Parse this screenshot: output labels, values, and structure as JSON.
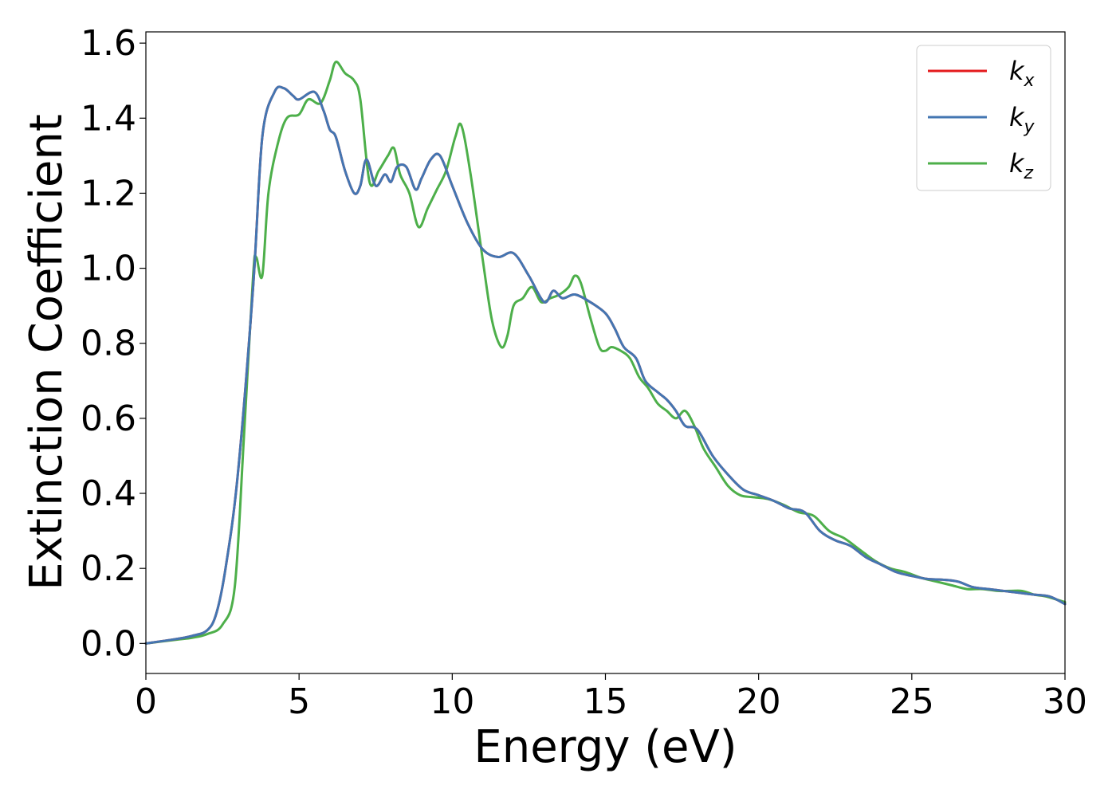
{
  "chart_data": {
    "type": "line",
    "title": "",
    "xlabel": "Energy (eV)",
    "ylabel": "Extinction Coefficient",
    "xlim": [
      0,
      30
    ],
    "ylim": [
      -0.08,
      1.63
    ],
    "xticks": [
      0,
      5,
      10,
      15,
      20,
      25,
      30
    ],
    "xtick_labels": [
      "0",
      "5",
      "10",
      "15",
      "20",
      "25",
      "30"
    ],
    "yticks": [
      0.0,
      0.2,
      0.4,
      0.6,
      0.8,
      1.0,
      1.2,
      1.4,
      1.6
    ],
    "ytick_labels": [
      "0.0",
      "0.2",
      "0.4",
      "0.6",
      "0.8",
      "1.0",
      "1.2",
      "1.4",
      "1.6"
    ],
    "grid": false,
    "legend_position": "top-right",
    "series": [
      {
        "name": "k_x",
        "label_base": "k",
        "label_sub": "x",
        "color": "#e41a1c",
        "x": [
          0,
          1,
          1.5,
          2,
          2.3,
          2.6,
          3.0,
          3.5,
          3.8,
          4.2,
          4.5,
          4.8,
          5.0,
          5.5,
          5.8,
          6.0,
          6.2,
          6.5,
          6.8,
          7.0,
          7.2,
          7.5,
          7.8,
          8.0,
          8.2,
          8.5,
          8.8,
          9.0,
          9.3,
          9.6,
          10.0,
          10.5,
          11.0,
          11.5,
          12.0,
          12.5,
          13.0,
          13.3,
          13.6,
          14.0,
          14.5,
          15.0,
          15.3,
          15.6,
          16.0,
          16.3,
          16.7,
          17.0,
          17.3,
          17.6,
          18.0,
          18.5,
          19.0,
          19.5,
          20.0,
          20.5,
          21.0,
          21.5,
          22.0,
          22.5,
          23.0,
          23.5,
          24.0,
          24.5,
          25.0,
          25.5,
          26.0,
          26.5,
          27.0,
          27.5,
          28.0,
          28.5,
          29.0,
          29.5,
          30.0
        ],
        "y": [
          0.0,
          0.012,
          0.02,
          0.035,
          0.08,
          0.2,
          0.45,
          0.95,
          1.35,
          1.47,
          1.48,
          1.46,
          1.45,
          1.47,
          1.42,
          1.37,
          1.35,
          1.26,
          1.2,
          1.22,
          1.29,
          1.22,
          1.25,
          1.23,
          1.27,
          1.27,
          1.21,
          1.24,
          1.29,
          1.3,
          1.22,
          1.12,
          1.05,
          1.03,
          1.04,
          0.98,
          0.91,
          0.94,
          0.92,
          0.93,
          0.91,
          0.88,
          0.84,
          0.79,
          0.76,
          0.7,
          0.67,
          0.65,
          0.62,
          0.58,
          0.57,
          0.5,
          0.45,
          0.41,
          0.395,
          0.38,
          0.36,
          0.35,
          0.3,
          0.275,
          0.26,
          0.23,
          0.21,
          0.19,
          0.18,
          0.172,
          0.17,
          0.165,
          0.15,
          0.145,
          0.14,
          0.135,
          0.13,
          0.125,
          0.105
        ]
      },
      {
        "name": "k_y",
        "label_base": "k",
        "label_sub": "y",
        "color": "#4376b2",
        "x": [
          0,
          1,
          1.5,
          2,
          2.3,
          2.6,
          3.0,
          3.5,
          3.8,
          4.2,
          4.5,
          4.8,
          5.0,
          5.5,
          5.8,
          6.0,
          6.2,
          6.5,
          6.8,
          7.0,
          7.2,
          7.5,
          7.8,
          8.0,
          8.2,
          8.5,
          8.8,
          9.0,
          9.3,
          9.6,
          10.0,
          10.5,
          11.0,
          11.5,
          12.0,
          12.5,
          13.0,
          13.3,
          13.6,
          14.0,
          14.5,
          15.0,
          15.3,
          15.6,
          16.0,
          16.3,
          16.7,
          17.0,
          17.3,
          17.6,
          18.0,
          18.5,
          19.0,
          19.5,
          20.0,
          20.5,
          21.0,
          21.5,
          22.0,
          22.5,
          23.0,
          23.5,
          24.0,
          24.5,
          25.0,
          25.5,
          26.0,
          26.5,
          27.0,
          27.5,
          28.0,
          28.5,
          29.0,
          29.5,
          30.0
        ],
        "y": [
          0.0,
          0.012,
          0.02,
          0.035,
          0.08,
          0.2,
          0.45,
          0.95,
          1.35,
          1.47,
          1.48,
          1.46,
          1.45,
          1.47,
          1.42,
          1.37,
          1.35,
          1.26,
          1.2,
          1.22,
          1.29,
          1.22,
          1.25,
          1.23,
          1.27,
          1.27,
          1.21,
          1.24,
          1.29,
          1.3,
          1.22,
          1.12,
          1.05,
          1.03,
          1.04,
          0.98,
          0.91,
          0.94,
          0.92,
          0.93,
          0.91,
          0.88,
          0.84,
          0.79,
          0.76,
          0.7,
          0.67,
          0.65,
          0.62,
          0.58,
          0.57,
          0.5,
          0.45,
          0.41,
          0.395,
          0.38,
          0.36,
          0.35,
          0.3,
          0.275,
          0.26,
          0.23,
          0.21,
          0.19,
          0.18,
          0.172,
          0.17,
          0.165,
          0.15,
          0.145,
          0.14,
          0.135,
          0.13,
          0.125,
          0.105
        ]
      },
      {
        "name": "k_z",
        "label_base": "k",
        "label_sub": "z",
        "color": "#4daf4a",
        "x": [
          0,
          1,
          1.5,
          2,
          2.5,
          2.9,
          3.2,
          3.5,
          3.6,
          3.8,
          4.0,
          4.3,
          4.6,
          5.0,
          5.3,
          5.7,
          6.0,
          6.2,
          6.5,
          6.8,
          7.0,
          7.3,
          7.6,
          7.9,
          8.1,
          8.3,
          8.6,
          8.9,
          9.2,
          9.5,
          9.8,
          10.1,
          10.3,
          10.6,
          11.0,
          11.3,
          11.6,
          11.8,
          12.0,
          12.3,
          12.6,
          12.9,
          13.2,
          13.5,
          13.8,
          14.0,
          14.2,
          14.5,
          14.8,
          15.0,
          15.2,
          15.5,
          15.8,
          16.1,
          16.4,
          16.7,
          17.0,
          17.3,
          17.6,
          17.9,
          18.2,
          18.6,
          19.0,
          19.4,
          19.8,
          20.3,
          20.8,
          21.3,
          21.8,
          22.3,
          22.8,
          23.3,
          23.8,
          24.3,
          24.8,
          25.3,
          25.8,
          26.3,
          26.8,
          27.3,
          27.8,
          28.2,
          28.6,
          29.0,
          29.4,
          30.0
        ],
        "y": [
          0.0,
          0.01,
          0.015,
          0.025,
          0.05,
          0.15,
          0.55,
          0.98,
          1.03,
          0.98,
          1.2,
          1.33,
          1.4,
          1.41,
          1.45,
          1.44,
          1.5,
          1.55,
          1.52,
          1.5,
          1.45,
          1.23,
          1.26,
          1.3,
          1.32,
          1.25,
          1.2,
          1.11,
          1.16,
          1.21,
          1.26,
          1.35,
          1.38,
          1.25,
          1.02,
          0.86,
          0.79,
          0.82,
          0.9,
          0.92,
          0.95,
          0.91,
          0.92,
          0.93,
          0.95,
          0.98,
          0.96,
          0.87,
          0.79,
          0.78,
          0.79,
          0.78,
          0.76,
          0.71,
          0.68,
          0.64,
          0.62,
          0.6,
          0.62,
          0.58,
          0.52,
          0.47,
          0.42,
          0.395,
          0.39,
          0.385,
          0.37,
          0.35,
          0.34,
          0.3,
          0.28,
          0.25,
          0.22,
          0.2,
          0.19,
          0.175,
          0.165,
          0.155,
          0.145,
          0.145,
          0.14,
          0.14,
          0.14,
          0.13,
          0.125,
          0.11
        ]
      }
    ]
  }
}
